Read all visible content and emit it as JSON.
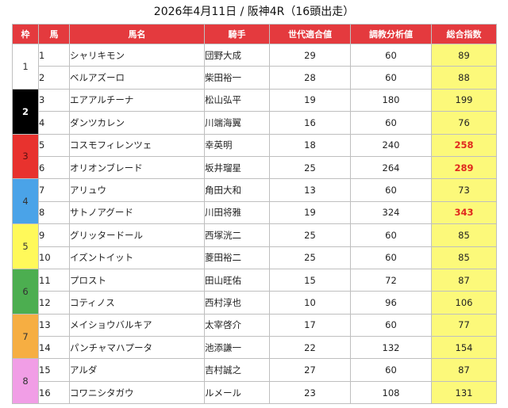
{
  "title": "2026年4月11日 / 阪神4R（16頭出走）",
  "headers": {
    "waku": "枠",
    "umaban": "馬",
    "horse": "馬名",
    "jockey": "騎手",
    "generation": "世代適合値",
    "training": "調教分析値",
    "total": "総合指数"
  },
  "colors": {
    "header_bg": "#e43a3e",
    "score_bg": "#fcf97a",
    "score_high_text": "#e0281e",
    "waku": {
      "1": "#ffffff",
      "2": "#000000",
      "3": "#e8322e",
      "4": "#4aa3e8",
      "5": "#fff95a",
      "6": "#4cae50",
      "7": "#f6ae42",
      "8": "#f19ee6"
    }
  },
  "waku_groups": [
    {
      "waku": "1",
      "horses": [
        {
          "num": "1",
          "name": "シャリキモン",
          "jockey": "団野大成",
          "generation": "29",
          "training": "60",
          "score": "89",
          "high": false
        },
        {
          "num": "2",
          "name": "ベルアズーロ",
          "jockey": "柴田裕一",
          "generation": "28",
          "training": "60",
          "score": "88",
          "high": false
        }
      ]
    },
    {
      "waku": "2",
      "horses": [
        {
          "num": "3",
          "name": "エアアルチーナ",
          "jockey": "松山弘平",
          "generation": "19",
          "training": "180",
          "score": "199",
          "high": false
        },
        {
          "num": "4",
          "name": "ダンツカレン",
          "jockey": "川端海翼",
          "generation": "16",
          "training": "60",
          "score": "76",
          "high": false
        }
      ]
    },
    {
      "waku": "3",
      "horses": [
        {
          "num": "5",
          "name": "コスモフィレンツェ",
          "jockey": "幸英明",
          "generation": "18",
          "training": "240",
          "score": "258",
          "high": true
        },
        {
          "num": "6",
          "name": "オリオンブレード",
          "jockey": "坂井瑠星",
          "generation": "25",
          "training": "264",
          "score": "289",
          "high": true
        }
      ]
    },
    {
      "waku": "4",
      "horses": [
        {
          "num": "7",
          "name": "アリュウ",
          "jockey": "角田大和",
          "generation": "13",
          "training": "60",
          "score": "73",
          "high": false
        },
        {
          "num": "8",
          "name": "サトノアグード",
          "jockey": "川田将雅",
          "generation": "19",
          "training": "324",
          "score": "343",
          "high": true
        }
      ]
    },
    {
      "waku": "5",
      "horses": [
        {
          "num": "9",
          "name": "グリッタードール",
          "jockey": "西塚洸二",
          "generation": "25",
          "training": "60",
          "score": "85",
          "high": false
        },
        {
          "num": "10",
          "name": "イズントイット",
          "jockey": "菱田裕二",
          "generation": "25",
          "training": "60",
          "score": "85",
          "high": false
        }
      ]
    },
    {
      "waku": "6",
      "horses": [
        {
          "num": "11",
          "name": "プロスト",
          "jockey": "田山旺佑",
          "generation": "15",
          "training": "72",
          "score": "87",
          "high": false
        },
        {
          "num": "12",
          "name": "コティノス",
          "jockey": "西村淳也",
          "generation": "10",
          "training": "96",
          "score": "106",
          "high": false
        }
      ]
    },
    {
      "waku": "7",
      "horses": [
        {
          "num": "13",
          "name": "メイショウバルキア",
          "jockey": "太宰啓介",
          "generation": "17",
          "training": "60",
          "score": "77",
          "high": false
        },
        {
          "num": "14",
          "name": "パンチャマハプータ",
          "jockey": "池添謙一",
          "generation": "22",
          "training": "132",
          "score": "154",
          "high": false
        }
      ]
    },
    {
      "waku": "8",
      "horses": [
        {
          "num": "15",
          "name": "アルダ",
          "jockey": "吉村誠之",
          "generation": "27",
          "training": "60",
          "score": "87",
          "high": false
        },
        {
          "num": "16",
          "name": "コワニシタガウ",
          "jockey": "ルメール",
          "generation": "23",
          "training": "108",
          "score": "131",
          "high": false
        }
      ]
    }
  ]
}
